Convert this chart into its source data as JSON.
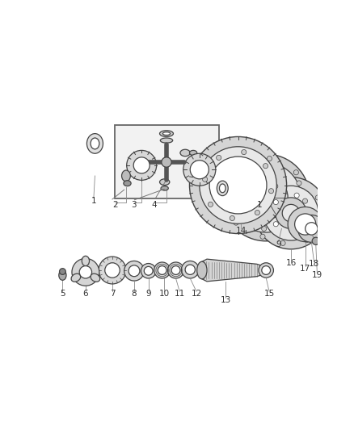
{
  "bg_color": "#ffffff",
  "line_color": "#444444",
  "part_color": "#aaaaaa",
  "dark_color": "#222222",
  "fill_light": "#e8e8e8",
  "fill_mid": "#cccccc",
  "fill_dark": "#999999"
}
